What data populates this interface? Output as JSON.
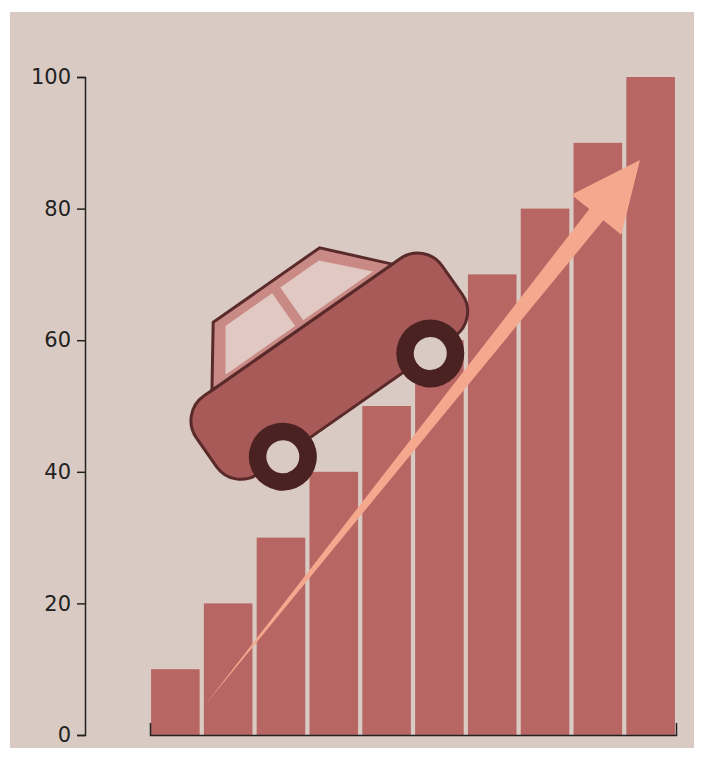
{
  "chart_data": {
    "type": "bar",
    "categories": [
      null,
      null,
      null,
      null,
      null,
      null,
      null,
      null,
      null,
      null
    ],
    "values": [
      10,
      20,
      30,
      40,
      50,
      60,
      70,
      80,
      90,
      100
    ],
    "color": "#b76664",
    "ylim": [
      0,
      100
    ],
    "yticks": [
      0,
      20,
      40,
      60,
      80,
      100
    ],
    "grid": false,
    "tick_labels": "y"
  }
}
